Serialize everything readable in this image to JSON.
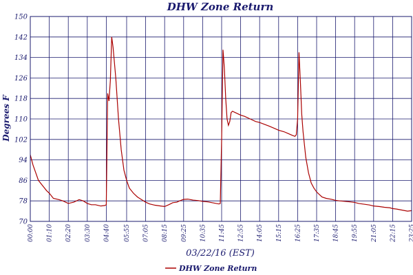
{
  "chart_data": {
    "type": "line",
    "title": "DHW Zone Return",
    "xlabel": "03/22/16 (EST)",
    "ylabel": "Degrees F",
    "ylim": [
      70,
      150
    ],
    "yticks": [
      70,
      78,
      86,
      94,
      102,
      110,
      118,
      126,
      134,
      142,
      150
    ],
    "xticks": [
      "00:00",
      "01:10",
      "02:20",
      "03:30",
      "04:40",
      "05:55",
      "07:05",
      "08:15",
      "09:25",
      "10:35",
      "11:45",
      "12:55",
      "14:05",
      "15:15",
      "16:25",
      "17:35",
      "18:45",
      "19:55",
      "21:05",
      "22:15",
      "23:25"
    ],
    "xlim": [
      "00:00",
      "23:25"
    ],
    "grid": true,
    "legend_position": "bottom",
    "colors": {
      "series": "#aa0000",
      "grid": "#1a1a6e",
      "text": "#1a1a6e"
    },
    "series": [
      {
        "name": "DHW Zone Return",
        "x": [
          "00:00",
          "00:10",
          "00:20",
          "00:30",
          "00:45",
          "01:00",
          "01:10",
          "01:25",
          "01:45",
          "02:00",
          "02:20",
          "02:40",
          "03:00",
          "03:15",
          "03:30",
          "03:45",
          "04:00",
          "04:20",
          "04:35",
          "04:40",
          "04:45",
          "04:50",
          "04:55",
          "05:00",
          "05:05",
          "05:15",
          "05:25",
          "05:35",
          "05:45",
          "05:55",
          "06:05",
          "06:20",
          "06:35",
          "06:50",
          "07:05",
          "07:20",
          "07:40",
          "08:00",
          "08:15",
          "08:30",
          "08:45",
          "09:00",
          "09:10",
          "09:25",
          "09:40",
          "10:00",
          "10:20",
          "10:35",
          "10:55",
          "11:15",
          "11:35",
          "11:40",
          "11:45",
          "11:50",
          "11:55",
          "12:00",
          "12:05",
          "12:10",
          "12:15",
          "12:20",
          "12:25",
          "12:35",
          "12:45",
          "12:55",
          "13:10",
          "13:30",
          "13:50",
          "14:05",
          "14:20",
          "14:40",
          "15:00",
          "15:15",
          "15:35",
          "15:50",
          "16:05",
          "16:15",
          "16:20",
          "16:25",
          "16:30",
          "16:35",
          "16:40",
          "16:45",
          "16:55",
          "17:05",
          "17:15",
          "17:25",
          "17:35",
          "17:45",
          "17:55",
          "18:10",
          "18:30",
          "18:45",
          "19:00",
          "19:20",
          "19:40",
          "19:55",
          "20:10",
          "20:30",
          "20:50",
          "21:05",
          "21:25",
          "21:45",
          "22:05",
          "22:15",
          "22:30",
          "22:45",
          "23:00",
          "23:10",
          "23:25"
        ],
        "values": [
          96,
          92,
          89,
          86,
          84,
          82,
          81,
          79,
          78.5,
          78,
          77,
          77.5,
          78.5,
          78,
          77,
          76.5,
          76.5,
          76,
          76.2,
          76.5,
          120,
          117,
          125,
          142,
          138,
          126,
          110,
          98,
          90,
          86,
          83,
          81,
          79.5,
          78.5,
          77.5,
          76.8,
          76.3,
          76,
          75.8,
          76.5,
          77.3,
          77.5,
          78,
          78.6,
          78.7,
          78.3,
          78.1,
          77.8,
          77.6,
          77.2,
          76.8,
          77,
          102,
          137,
          130,
          118,
          110,
          107.5,
          109,
          112.5,
          113,
          112.5,
          112,
          111.5,
          111,
          110,
          109,
          108.6,
          108,
          107.2,
          106.3,
          105.6,
          105,
          104.3,
          103.6,
          103.2,
          103.8,
          110,
          136,
          125,
          112,
          105,
          95,
          89,
          85,
          83,
          81.5,
          80.5,
          79.5,
          79,
          78.6,
          78.2,
          78,
          77.8,
          77.6,
          77.4,
          77,
          76.7,
          76.4,
          76,
          75.8,
          75.5,
          75.3,
          75,
          74.8,
          74.5,
          74.2,
          74,
          74.2
        ]
      }
    ]
  }
}
